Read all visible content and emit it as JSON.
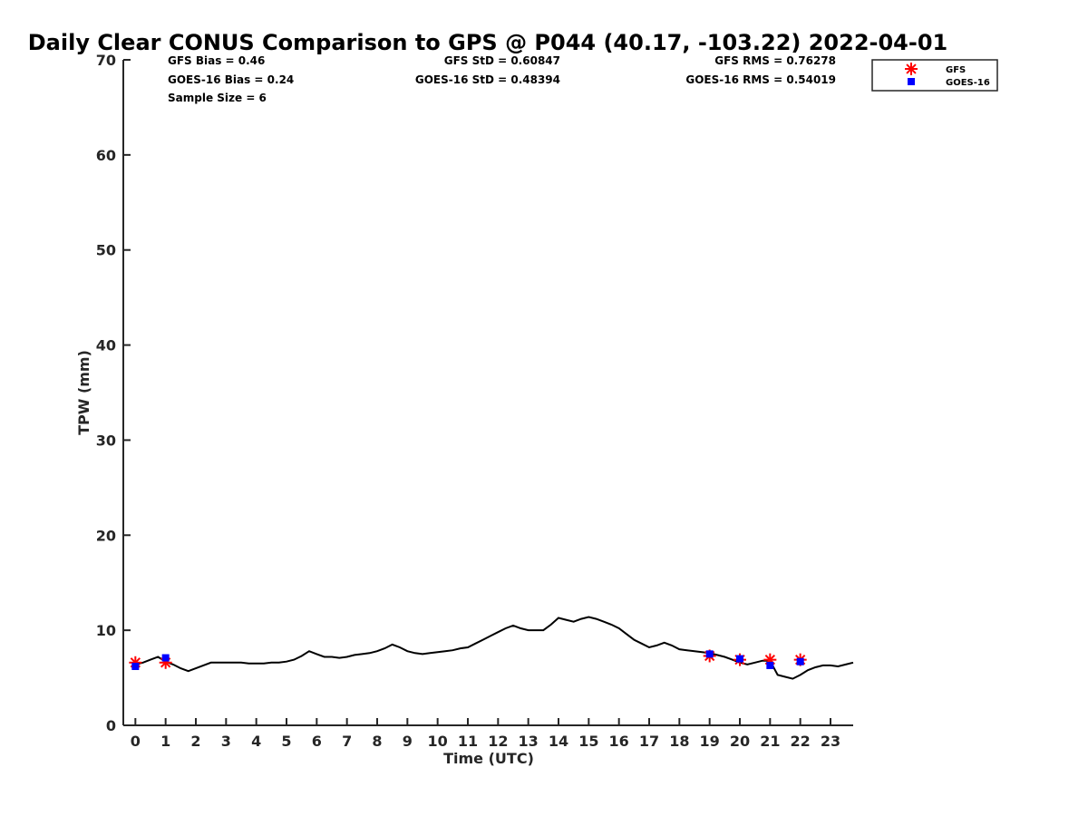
{
  "chart_data": {
    "type": "line",
    "title": "Daily Clear CONUS Comparison to GPS @ P044 (40.17, -103.22) 2022-04-01",
    "xlabel": "Time (UTC)",
    "ylabel": "TPW (mm)",
    "xlim": [
      -0.4,
      23.75
    ],
    "ylim": [
      0,
      70
    ],
    "x_ticks": [
      0,
      1,
      2,
      3,
      4,
      5,
      6,
      7,
      8,
      9,
      10,
      11,
      12,
      13,
      14,
      15,
      16,
      17,
      18,
      19,
      20,
      21,
      22,
      23
    ],
    "y_ticks": [
      0,
      10,
      20,
      30,
      40,
      50,
      60,
      70
    ],
    "grid": false,
    "legend_position": "top-right",
    "stats": {
      "gfs_bias": "GFS Bias = 0.46",
      "goes_bias": "GOES-16 Bias = 0.24",
      "sample_size": "Sample Size = 6",
      "gfs_std": "GFS StD = 0.60847",
      "goes_std": "GOES-16 StD = 0.48394",
      "gfs_rms": "GFS RMS = 0.76278",
      "goes_rms": "GOES-16 RMS = 0.54019"
    },
    "series": [
      {
        "name": "GPS",
        "kind": "line",
        "color": "#000000",
        "x": [
          0,
          0.25,
          0.5,
          0.75,
          1,
          1.25,
          1.5,
          1.75,
          2,
          2.25,
          2.5,
          2.75,
          3,
          3.25,
          3.5,
          3.75,
          4,
          4.25,
          4.5,
          4.75,
          5,
          5.25,
          5.5,
          5.75,
          6,
          6.25,
          6.5,
          6.75,
          7,
          7.25,
          7.5,
          7.75,
          8,
          8.25,
          8.5,
          8.75,
          9,
          9.25,
          9.5,
          9.75,
          10,
          10.25,
          10.5,
          10.75,
          11,
          11.25,
          11.5,
          11.75,
          12,
          12.25,
          12.5,
          12.75,
          13,
          13.25,
          13.5,
          13.75,
          14,
          14.25,
          14.5,
          14.75,
          15,
          15.25,
          15.5,
          15.75,
          16,
          16.25,
          16.5,
          16.75,
          17,
          17.25,
          17.5,
          17.75,
          18,
          18.25,
          18.5,
          18.75,
          19,
          19.25,
          19.5,
          19.75,
          20,
          20.25,
          20.5,
          20.75,
          21,
          21.25,
          21.5,
          21.75,
          22,
          22.25,
          22.5,
          22.75,
          23,
          23.25,
          23.5,
          23.75
        ],
        "y": [
          6.4,
          6.6,
          6.9,
          7.2,
          6.7,
          6.4,
          6.0,
          5.7,
          6.0,
          6.3,
          6.6,
          6.6,
          6.6,
          6.6,
          6.6,
          6.5,
          6.5,
          6.5,
          6.6,
          6.6,
          6.7,
          6.9,
          7.3,
          7.8,
          7.5,
          7.2,
          7.2,
          7.1,
          7.2,
          7.4,
          7.5,
          7.6,
          7.8,
          8.1,
          8.5,
          8.2,
          7.8,
          7.6,
          7.5,
          7.6,
          7.7,
          7.8,
          7.9,
          8.1,
          8.2,
          8.6,
          9.0,
          9.4,
          9.8,
          10.2,
          10.5,
          10.2,
          10.0,
          10.0,
          10.0,
          10.6,
          11.3,
          11.1,
          10.9,
          11.2,
          11.4,
          11.2,
          10.9,
          10.6,
          10.2,
          9.6,
          9.0,
          8.6,
          8.2,
          8.4,
          8.7,
          8.4,
          8.0,
          7.9,
          7.8,
          7.7,
          7.6,
          7.4,
          7.2,
          6.9,
          6.6,
          6.4,
          6.6,
          6.8,
          6.8,
          5.3,
          5.1,
          4.9,
          5.3,
          5.8,
          6.1,
          6.3,
          6.3,
          6.2,
          6.4,
          6.6
        ]
      },
      {
        "name": "GFS",
        "kind": "marker",
        "marker": "asterisk",
        "color": "#ff0000",
        "x": [
          0,
          1,
          19,
          20,
          21,
          22
        ],
        "y": [
          6.6,
          6.6,
          7.3,
          6.9,
          6.9,
          6.9
        ]
      },
      {
        "name": "GOES-16",
        "kind": "marker",
        "marker": "square",
        "color": "#0000ff",
        "x": [
          0,
          1,
          19,
          20,
          21,
          22
        ],
        "y": [
          6.2,
          7.1,
          7.5,
          7.0,
          6.3,
          6.7
        ]
      }
    ],
    "legend": [
      {
        "label": "GFS",
        "marker": "asterisk",
        "color": "#ff0000"
      },
      {
        "label": "GOES-16",
        "marker": "square",
        "color": "#0000ff"
      }
    ]
  }
}
